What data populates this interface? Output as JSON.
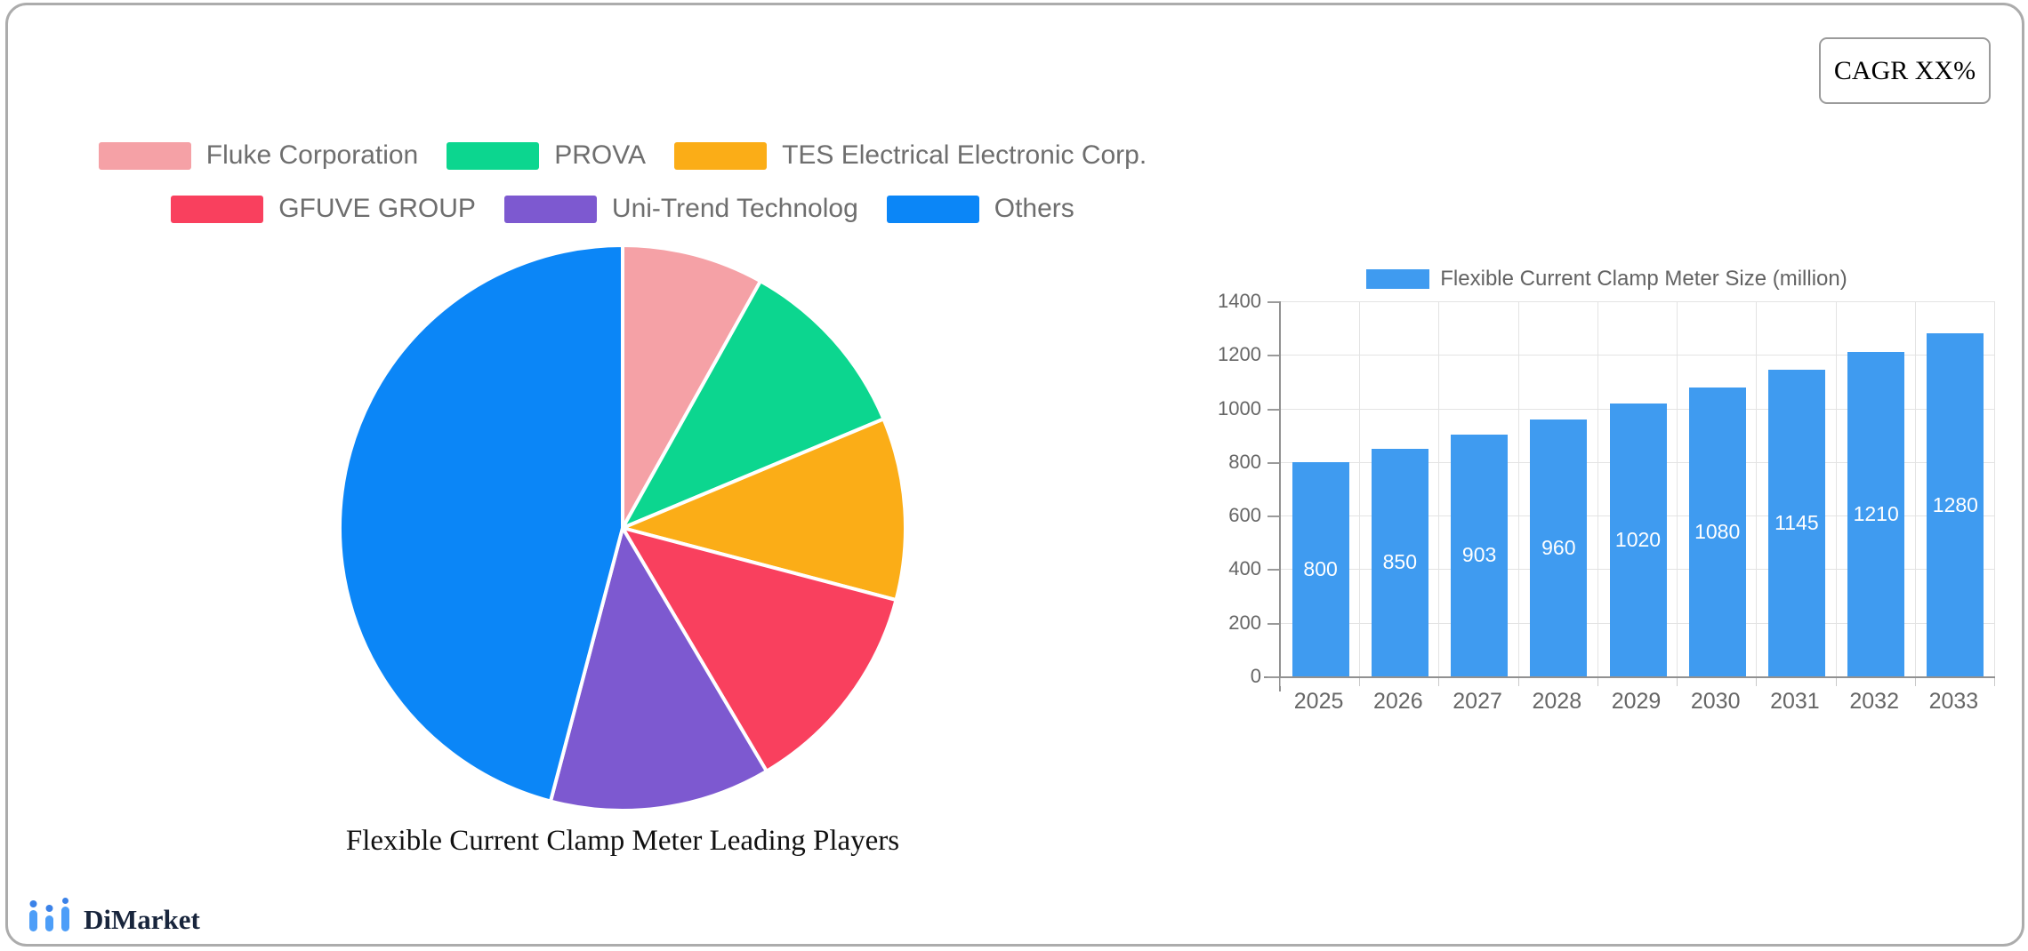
{
  "cagr": {
    "label": "CAGR XX%"
  },
  "brand": {
    "name": "DiMarket"
  },
  "pie": {
    "title": "Flexible Current Clamp Meter Leading Players"
  },
  "bar": {
    "legend_label": "Flexible Current Clamp Meter Size (million)"
  },
  "chart_data": [
    {
      "type": "pie",
      "title": "Flexible Current Clamp Meter Leading Players",
      "legend_position": "top",
      "legend_rows": [
        3,
        3
      ],
      "labels": [
        "Fluke Corporation",
        "PROVA",
        "TES Electrical Electronic Corp.",
        "GFUVE GROUP",
        "Uni-Trend Technolog",
        "Others"
      ],
      "values_percent": [
        8.1,
        10.6,
        10.4,
        12.4,
        12.6,
        45.9
      ],
      "colors": [
        "#f5a1a6",
        "#0cd68f",
        "#fbad17",
        "#f9405e",
        "#7d59d0",
        "#0b86f7"
      ],
      "start_angle": "top",
      "direction": "clockwise",
      "slice_border_color": "#ffffff"
    },
    {
      "type": "bar",
      "series": [
        {
          "name": "Flexible Current Clamp Meter Size (million)",
          "values": [
            800,
            850,
            903,
            960,
            1020,
            1080,
            1145,
            1210,
            1280
          ]
        }
      ],
      "categories": [
        "2025",
        "2026",
        "2027",
        "2028",
        "2029",
        "2030",
        "2031",
        "2032",
        "2033"
      ],
      "bar_color": "#3f9bf0",
      "value_label_color": "#ffffff",
      "ylim": [
        0,
        1400
      ],
      "yticks": [
        0,
        200,
        400,
        600,
        800,
        1000,
        1200,
        1400
      ],
      "grid": true,
      "legend_position": "top"
    }
  ]
}
